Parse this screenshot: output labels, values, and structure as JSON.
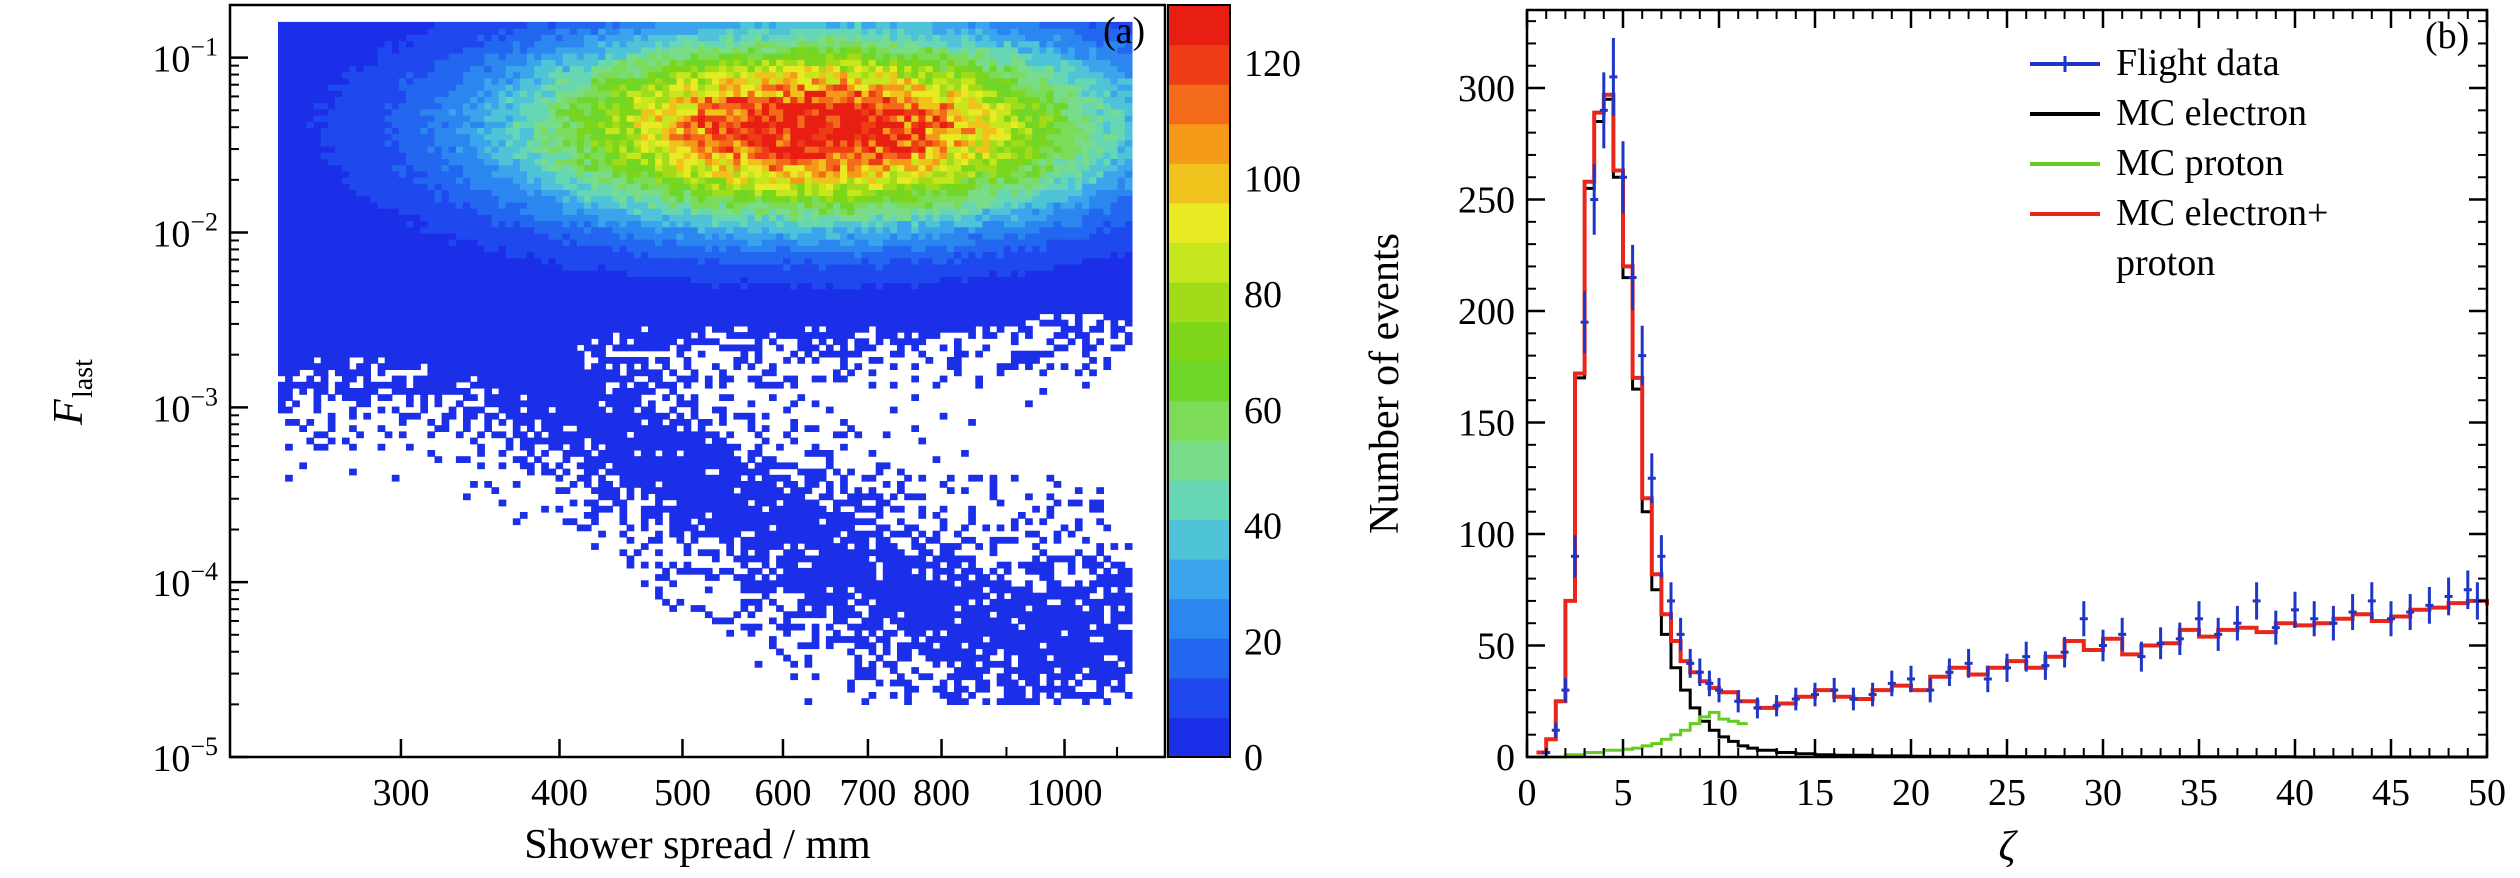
{
  "chart_data": [
    {
      "panel_label": "(a)",
      "type": "heatmap",
      "xlabel": "Shower spread / mm",
      "ylabel_main": "F",
      "ylabel_sub": "last",
      "x_scale": "log",
      "y_scale": "log",
      "xlim": [
        220,
        1200
      ],
      "ylim": [
        1e-05,
        0.2
      ],
      "x_ticks": [
        300,
        400,
        500,
        600,
        700,
        800,
        1000
      ],
      "x_tick_labels": [
        "300",
        "400",
        "500",
        "600",
        "700",
        "800",
        "1000"
      ],
      "y_ticks": [
        1e-05,
        0.0001,
        0.001,
        0.01,
        0.1
      ],
      "y_tick_labels": [
        {
          "base": "10",
          "exp": "−5"
        },
        {
          "base": "10",
          "exp": "−4"
        },
        {
          "base": "10",
          "exp": "−3"
        },
        {
          "base": "10",
          "exp": "−2"
        },
        {
          "base": "10",
          "exp": "−1"
        }
      ],
      "colorbar": {
        "min": 0,
        "max": 130,
        "ticks": [
          0,
          20,
          40,
          60,
          80,
          100,
          120
        ],
        "tick_labels": [
          "0",
          "20",
          "40",
          "60",
          "80",
          "100",
          "120"
        ],
        "colors": [
          "#1c2fe8",
          "#1f49ee",
          "#2366f0",
          "#2c86f0",
          "#3aa5ec",
          "#4fc3d8",
          "#67d6b4",
          "#78dc8a",
          "#7cdc5a",
          "#6fd62a",
          "#7ed61a",
          "#a0dc1a",
          "#c6e61e",
          "#e8ea24",
          "#f0c21c",
          "#f59a18",
          "#f36a1a",
          "#ee3d16",
          "#e81e12"
        ]
      },
      "density_model": {
        "core": {
          "x_center": 640,
          "y_center": 0.04,
          "count_peak": 125
        },
        "tail": [
          [
            320,
            0.003
          ],
          [
            400,
            0.0012
          ],
          [
            500,
            0.0004
          ],
          [
            700,
            0.0001
          ],
          [
            900,
            5e-05
          ]
        ],
        "note_bins": "2D histogram of event counts per bin"
      }
    },
    {
      "panel_label": "(b)",
      "type": "line",
      "xlabel": "ζ",
      "ylabel": "Number of events",
      "xlim": [
        0,
        50
      ],
      "ylim": [
        0,
        335
      ],
      "x_ticks": [
        0,
        5,
        10,
        15,
        20,
        25,
        30,
        35,
        40,
        45,
        50
      ],
      "y_ticks": [
        0,
        50,
        100,
        150,
        200,
        250,
        300
      ],
      "legend_position": "top-right",
      "series": [
        {
          "name": "Flight data",
          "color": "#1f35c8",
          "style": "points_with_errorbars",
          "x": [
            1,
            1.5,
            2,
            2.5,
            3,
            3.5,
            4,
            4.5,
            5,
            5.5,
            6,
            6.5,
            7,
            7.5,
            8,
            8.5,
            9,
            9.5,
            10,
            11,
            12,
            13,
            14,
            15,
            16,
            17,
            18,
            19,
            20,
            21,
            22,
            23,
            24,
            25,
            26,
            27,
            28,
            29,
            30,
            31,
            32,
            33,
            34,
            35,
            36,
            37,
            38,
            39,
            40,
            41,
            42,
            43,
            44,
            45,
            46,
            47,
            48,
            49,
            49.5
          ],
          "y": [
            2,
            12,
            30,
            90,
            195,
            250,
            290,
            305,
            260,
            215,
            180,
            125,
            90,
            70,
            55,
            42,
            38,
            33,
            30,
            25,
            22,
            23,
            26,
            28,
            30,
            26,
            28,
            33,
            35,
            30,
            38,
            42,
            35,
            40,
            45,
            41,
            47,
            62,
            50,
            55,
            45,
            51,
            53,
            62,
            55,
            60,
            70,
            58,
            66,
            62,
            60,
            65,
            70,
            62,
            65,
            68,
            72,
            75,
            70
          ]
        },
        {
          "name": "MC electron",
          "color": "#000000",
          "style": "step",
          "x": [
            0.5,
            1,
            1.5,
            2,
            2.5,
            3,
            3.5,
            4,
            4.5,
            5,
            5.5,
            6,
            6.5,
            7,
            7.5,
            8,
            8.5,
            9,
            9.5,
            10,
            10.5,
            11,
            11.5,
            12,
            13,
            14,
            15,
            16,
            18,
            20,
            25,
            30,
            35,
            40,
            45,
            50
          ],
          "y": [
            2,
            8,
            25,
            70,
            170,
            255,
            285,
            295,
            260,
            215,
            165,
            110,
            75,
            55,
            40,
            30,
            22,
            16,
            12,
            9,
            7,
            5,
            4,
            3,
            2,
            1.5,
            1,
            0.8,
            0.5,
            0.3,
            0.2,
            0.1,
            0.1,
            0,
            0,
            0
          ]
        },
        {
          "name": "MC proton",
          "color": "#66cc22",
          "style": "step",
          "x": [
            0.5,
            1,
            2,
            3,
            4,
            5,
            5.5,
            6,
            6.5,
            7,
            7.5,
            8,
            8.5,
            9,
            9.5,
            10,
            10.5,
            11
          ],
          "y": [
            0,
            0,
            1,
            2,
            3,
            3.5,
            4,
            5,
            6,
            8,
            10,
            12,
            15,
            18,
            20,
            17,
            16,
            15
          ]
        },
        {
          "name": "MC electron+ proton",
          "legend_lines": [
            "MC electron+",
            "proton"
          ],
          "color": "#e8271a",
          "style": "step",
          "x": [
            0.5,
            1,
            1.5,
            2,
            2.5,
            3,
            3.5,
            4,
            4.5,
            5,
            5.5,
            6,
            6.5,
            7,
            7.5,
            8,
            8.5,
            9,
            9.5,
            10,
            11,
            12,
            13,
            14,
            15,
            16,
            17,
            18,
            19,
            20,
            21,
            22,
            23,
            24,
            25,
            26,
            27,
            28,
            29,
            30,
            31,
            32,
            33,
            34,
            35,
            36,
            37,
            38,
            39,
            40,
            41,
            42,
            43,
            44,
            45,
            46,
            47,
            48,
            49,
            50
          ],
          "y": [
            2,
            8,
            25,
            70,
            172,
            258,
            289,
            297,
            263,
            220,
            170,
            116,
            82,
            64,
            52,
            43,
            38,
            34,
            31,
            29,
            25,
            22,
            24,
            27,
            30,
            27,
            26,
            30,
            32,
            30,
            36,
            40,
            37,
            40,
            43,
            40,
            45,
            52,
            48,
            53,
            46,
            50,
            51,
            57,
            54,
            57,
            58,
            56,
            60,
            59,
            60,
            62,
            64,
            61,
            63,
            66,
            67,
            69,
            70,
            68
          ]
        }
      ]
    }
  ]
}
